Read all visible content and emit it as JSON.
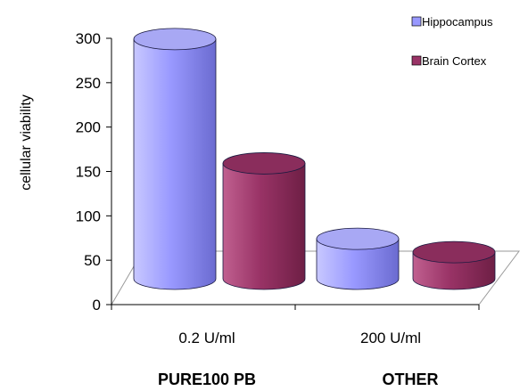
{
  "chart_data": {
    "type": "bar",
    "style": "3d-cylinder",
    "categories": [
      "0.2 U/ml",
      "200 U/ml"
    ],
    "group_labels": [
      "PURE100 PB",
      "OTHER"
    ],
    "series": [
      {
        "name": "Hippocampus",
        "values": [
          270,
          45
        ],
        "color": "#9999ff"
      },
      {
        "name": "Brain Cortex",
        "values": [
          130,
          30
        ],
        "color": "#993366"
      }
    ],
    "ylabel": "cellular viability",
    "ylim": [
      0,
      300
    ],
    "yticks": [
      0,
      50,
      100,
      150,
      200,
      250,
      300
    ],
    "legend_position": "top-right",
    "grid": false
  }
}
